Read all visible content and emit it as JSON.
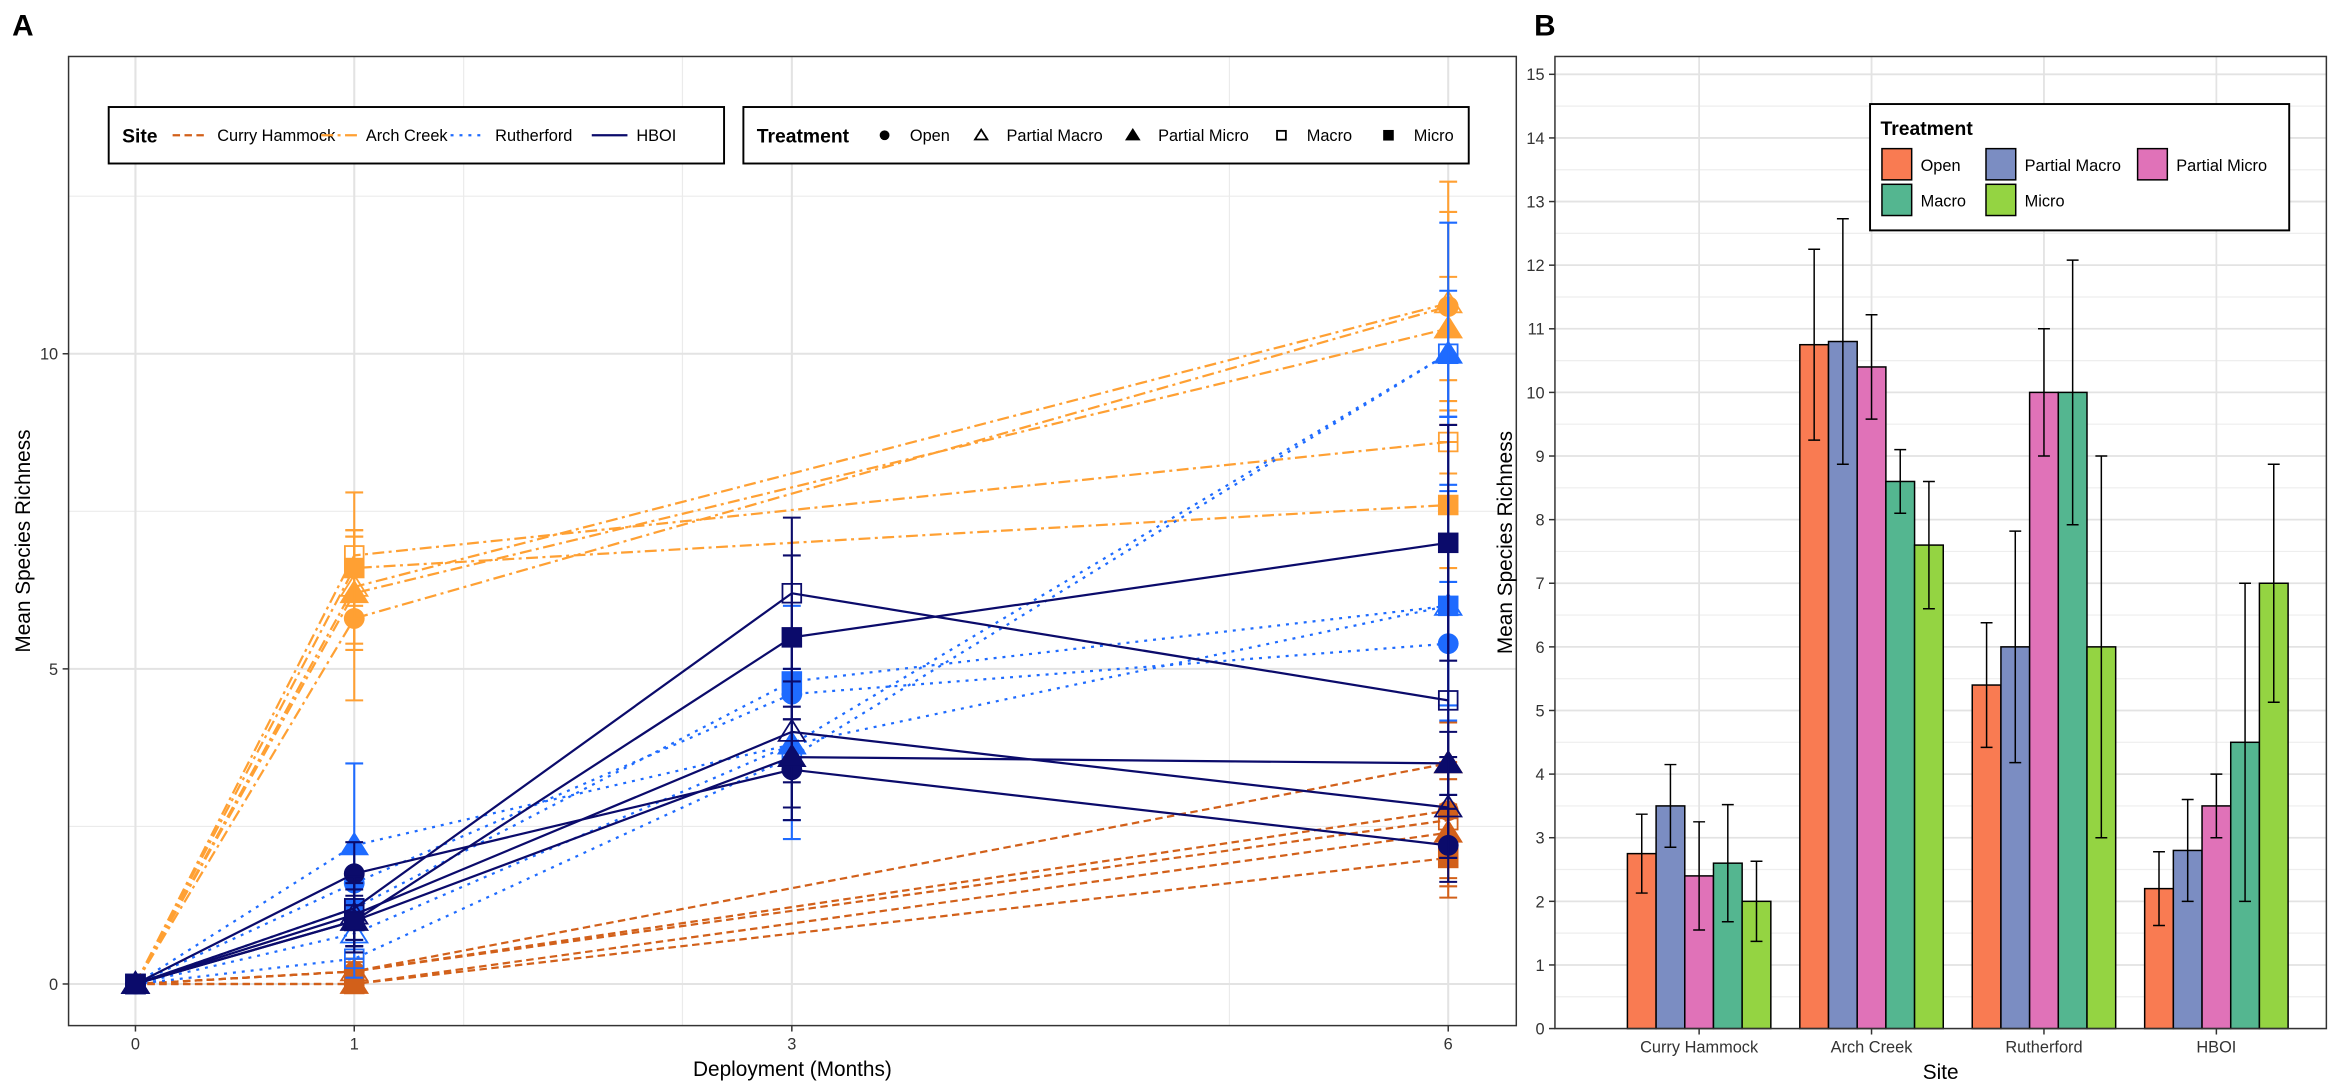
{
  "chart_data": [
    {
      "panel": "A",
      "type": "line",
      "xlabel": "Deployment (Months)",
      "ylabel": "Mean Species Richness",
      "xticks": [
        0,
        1,
        3,
        6
      ],
      "yticks": [
        0,
        5,
        10
      ],
      "xlim": [
        -0.3,
        6.3
      ],
      "ylim": [
        -0.7,
        14.7
      ],
      "grid": true,
      "legend_site": {
        "title": "Site",
        "entries": [
          "Curry Hammock",
          "Arch Creek",
          "Rutherford",
          "HBOI"
        ],
        "placement": "top-left"
      },
      "legend_treatment": {
        "title": "Treatment",
        "entries": [
          "Open",
          "Partial Macro",
          "Partial Micro",
          "Macro",
          "Micro"
        ],
        "placement": "top-right"
      },
      "site_colors": {
        "Curry Hammock": "#D2601A",
        "Arch Creek": "#FFA033",
        "Rutherford": "#1E6BFF",
        "HBOI": "#0B0B6B"
      },
      "series": [
        {
          "site": "Curry Hammock",
          "treatment": "Open",
          "points": [
            [
              0,
              0,
              0
            ],
            [
              1,
              0.2,
              0.2
            ],
            [
              6,
              2.75,
              0.62
            ]
          ]
        },
        {
          "site": "Curry Hammock",
          "treatment": "Partial Macro",
          "points": [
            [
              0,
              0,
              0
            ],
            [
              1,
              0.2,
              0.2
            ],
            [
              6,
              3.5,
              0.65
            ]
          ]
        },
        {
          "site": "Curry Hammock",
          "treatment": "Partial Micro",
          "points": [
            [
              0,
              0,
              0
            ],
            [
              1,
              0,
              0
            ],
            [
              6,
              2.4,
              0.85
            ]
          ]
        },
        {
          "site": "Curry Hammock",
          "treatment": "Macro",
          "points": [
            [
              0,
              0,
              0
            ],
            [
              1,
              0.2,
              0.2
            ],
            [
              6,
              2.6,
              0.92
            ]
          ]
        },
        {
          "site": "Curry Hammock",
          "treatment": "Micro",
          "points": [
            [
              0,
              0,
              0
            ],
            [
              1,
              0,
              0
            ],
            [
              6,
              2.0,
              0.63
            ]
          ]
        },
        {
          "site": "Arch Creek",
          "treatment": "Open",
          "points": [
            [
              0,
              0,
              0
            ],
            [
              1,
              5.8,
              1.3
            ],
            [
              6,
              10.75,
              1.5
            ]
          ]
        },
        {
          "site": "Arch Creek",
          "treatment": "Partial Macro",
          "points": [
            [
              0,
              0,
              0
            ],
            [
              1,
              6.3,
              0.9
            ],
            [
              6,
              10.8,
              1.93
            ]
          ]
        },
        {
          "site": "Arch Creek",
          "treatment": "Partial Micro",
          "points": [
            [
              0,
              0,
              0
            ],
            [
              1,
              6.2,
              0.9
            ],
            [
              6,
              10.4,
              0.82
            ]
          ]
        },
        {
          "site": "Arch Creek",
          "treatment": "Macro",
          "points": [
            [
              0,
              0,
              0
            ],
            [
              1,
              6.8,
              1.0
            ],
            [
              6,
              8.6,
              0.5
            ]
          ]
        },
        {
          "site": "Arch Creek",
          "treatment": "Micro",
          "points": [
            [
              0,
              0,
              0
            ],
            [
              1,
              6.6,
              0.6
            ],
            [
              6,
              7.6,
              1.0
            ]
          ]
        },
        {
          "site": "Rutherford",
          "treatment": "Open",
          "points": [
            [
              0,
              0,
              0
            ],
            [
              1,
              1.6,
              0.5
            ],
            [
              3,
              4.6,
              1.0
            ],
            [
              6,
              5.4,
              0.98
            ]
          ]
        },
        {
          "site": "Rutherford",
          "treatment": "Partial Macro",
          "points": [
            [
              0,
              0,
              0
            ],
            [
              1,
              0.8,
              0.4
            ],
            [
              3,
              3.8,
              1.2
            ],
            [
              6,
              6.0,
              1.82
            ]
          ]
        },
        {
          "site": "Rutherford",
          "treatment": "Partial Micro",
          "points": [
            [
              0,
              0,
              0
            ],
            [
              1,
              2.2,
              1.3
            ],
            [
              3,
              3.8,
              1.2
            ],
            [
              6,
              10.0,
              1.0
            ]
          ]
        },
        {
          "site": "Rutherford",
          "treatment": "Macro",
          "points": [
            [
              0,
              0,
              0
            ],
            [
              1,
              0.4,
              0.3
            ],
            [
              3,
              3.6,
              1.3
            ],
            [
              6,
              10.0,
              2.08
            ]
          ]
        },
        {
          "site": "Rutherford",
          "treatment": "Micro",
          "points": [
            [
              0,
              0,
              0
            ],
            [
              1,
              1.2,
              0.6
            ],
            [
              3,
              4.8,
              1.2
            ],
            [
              6,
              6.0,
              3.0
            ]
          ]
        },
        {
          "site": "HBOI",
          "treatment": "Open",
          "points": [
            [
              0,
              0,
              0
            ],
            [
              1,
              1.75,
              0.5
            ],
            [
              3,
              3.4,
              0.8
            ],
            [
              6,
              2.2,
              0.58
            ]
          ]
        },
        {
          "site": "HBOI",
          "treatment": "Partial Macro",
          "points": [
            [
              0,
              0,
              0
            ],
            [
              1,
              1.1,
              0.5
            ],
            [
              3,
              4.0,
              0.8
            ],
            [
              6,
              2.8,
              0.8
            ]
          ]
        },
        {
          "site": "HBOI",
          "treatment": "Partial Micro",
          "points": [
            [
              0,
              0,
              0
            ],
            [
              1,
              1.0,
              0.5
            ],
            [
              3,
              3.6,
              0.8
            ],
            [
              6,
              3.5,
              0.5
            ]
          ]
        },
        {
          "site": "HBOI",
          "treatment": "Macro",
          "points": [
            [
              0,
              0,
              0
            ],
            [
              1,
              1.2,
              0.5
            ],
            [
              3,
              6.2,
              1.2
            ],
            [
              6,
              4.5,
              2.5
            ]
          ]
        },
        {
          "site": "HBOI",
          "treatment": "Micro",
          "points": [
            [
              0,
              0,
              0
            ],
            [
              1,
              1.0,
              0.4
            ],
            [
              3,
              5.5,
              1.3
            ],
            [
              6,
              7.0,
              1.87
            ]
          ]
        }
      ]
    },
    {
      "panel": "B",
      "type": "bar",
      "xlabel": "Site",
      "ylabel": "Mean Species Richness",
      "categories": [
        "Curry Hammock",
        "Arch Creek",
        "Rutherford",
        "HBOI"
      ],
      "ylim": [
        0,
        15
      ],
      "yticks": [
        0,
        1,
        2,
        3,
        4,
        5,
        6,
        7,
        8,
        9,
        10,
        11,
        12,
        13,
        14,
        15
      ],
      "grid": true,
      "legend": {
        "title": "Treatment",
        "placement": "top-right"
      },
      "series": [
        {
          "name": "Open",
          "color": "#F97B52",
          "values": [
            2.75,
            10.75,
            5.4,
            2.2
          ],
          "errors": [
            0.62,
            1.5,
            0.98,
            0.58
          ]
        },
        {
          "name": "Partial Macro",
          "color": "#7B8DC2",
          "values": [
            3.5,
            10.8,
            6.0,
            2.8
          ],
          "errors": [
            0.65,
            1.93,
            1.82,
            0.8
          ]
        },
        {
          "name": "Partial Micro",
          "color": "#E072B8",
          "values": [
            2.4,
            10.4,
            10.0,
            3.5
          ],
          "errors": [
            0.85,
            0.82,
            1.0,
            0.5
          ]
        },
        {
          "name": "Macro",
          "color": "#54B690",
          "values": [
            2.6,
            8.6,
            10.0,
            4.5
          ],
          "errors": [
            0.92,
            0.5,
            2.08,
            2.5
          ]
        },
        {
          "name": "Micro",
          "color": "#94D442",
          "values": [
            2.0,
            7.6,
            6.0,
            7.0
          ],
          "errors": [
            0.63,
            1.0,
            3.0,
            1.87
          ]
        }
      ]
    }
  ]
}
